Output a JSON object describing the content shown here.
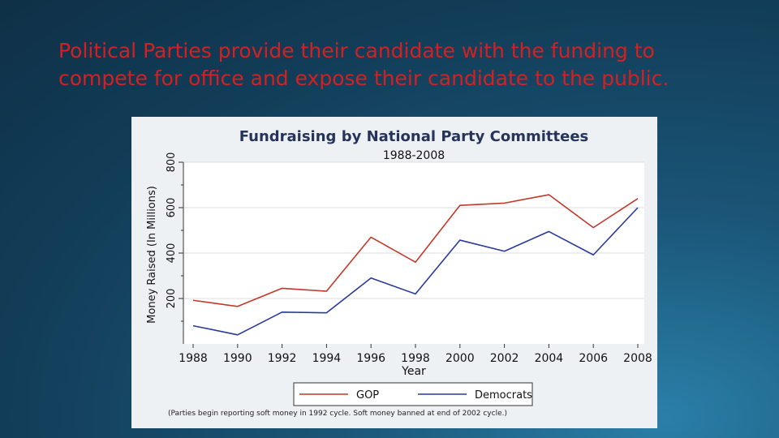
{
  "slide": {
    "headline": "Political Parties provide their candidate with the funding to compete for office and expose their candidate to the public."
  },
  "chart_data": {
    "type": "line",
    "title": "Fundraising by National Party Committees",
    "subtitle": "1988-2008",
    "xlabel": "Year",
    "ylabel": "Money Raised (In Millions)",
    "x": [
      "1988",
      "1990",
      "1992",
      "1994",
      "1996",
      "1998",
      "2000",
      "2002",
      "2004",
      "2006",
      "2008"
    ],
    "yticks": [
      "200",
      "400",
      "600",
      "800"
    ],
    "ylim": [
      0,
      800
    ],
    "grid": true,
    "legend": "bottom",
    "series": [
      {
        "name": "GOP",
        "color": "#c0392b",
        "values": [
          192,
          165,
          245,
          232,
          470,
          360,
          610,
          620,
          657,
          512,
          640
        ]
      },
      {
        "name": "Democrats",
        "color": "#2a3a9a",
        "values": [
          80,
          40,
          140,
          137,
          290,
          220,
          457,
          408,
          495,
          392,
          600
        ]
      }
    ],
    "note": "(Parties begin reporting soft money in 1992 cycle. Soft money banned at end of 2002 cycle.)"
  }
}
